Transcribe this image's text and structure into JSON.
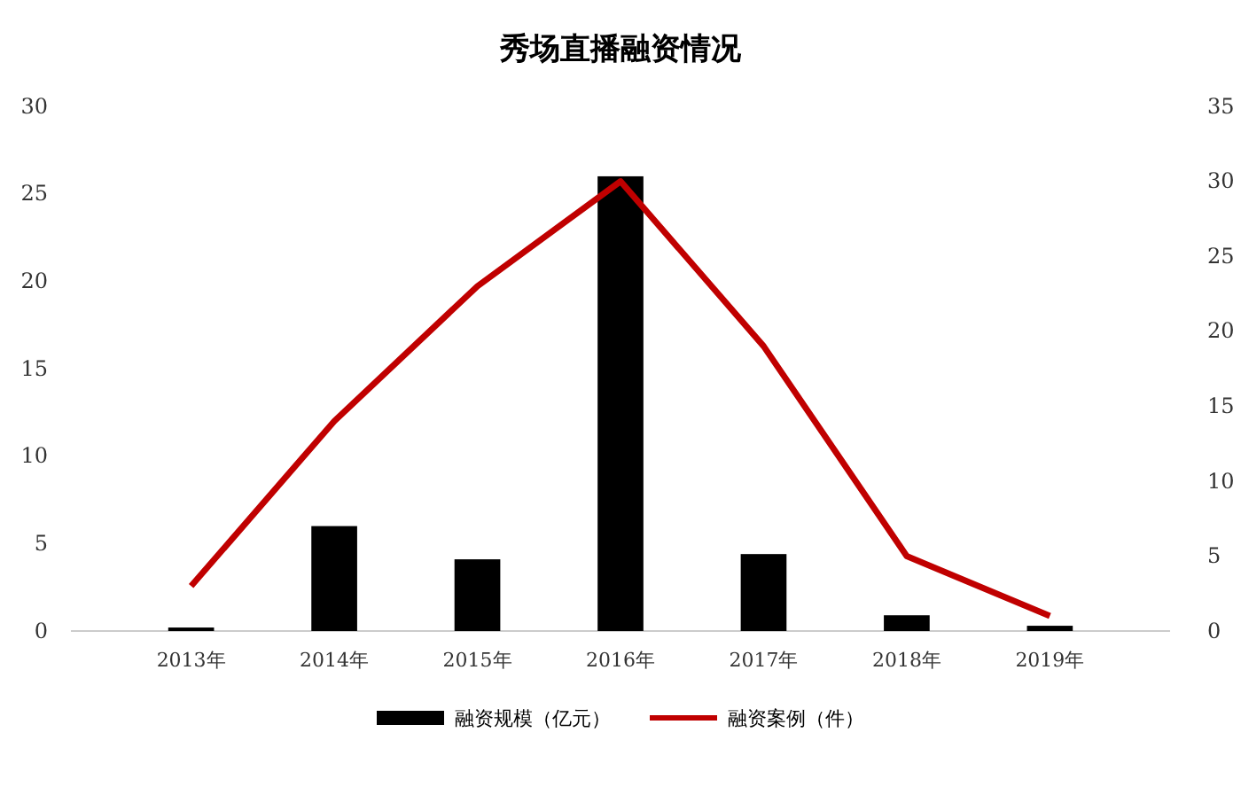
{
  "chart_data": {
    "type": "bar",
    "title": "秀场直播融资情况",
    "categories": [
      "2013年",
      "2014年",
      "2015年",
      "2016年",
      "2017年",
      "2018年",
      "2019年"
    ],
    "series": [
      {
        "name": "融资规模（亿元）",
        "color": "#000000",
        "values": [
          0.2,
          6,
          4.1,
          26,
          4.4,
          0.9,
          0.3
        ]
      },
      {
        "name": "融资案例（件）",
        "type": "line",
        "axis": "y2",
        "color": "#c00000",
        "values": [
          3,
          14,
          23,
          30,
          19,
          5,
          1
        ]
      }
    ],
    "ylim": [
      0,
      30
    ],
    "yticks": [
      0,
      5,
      10,
      15,
      20,
      25,
      30
    ],
    "y2lim": [
      0,
      35
    ],
    "y2ticks": [
      0,
      5,
      10,
      15,
      20,
      25,
      30,
      35
    ],
    "grid": false,
    "legend": "bottom",
    "marker": "none",
    "line_style": "solid"
  }
}
